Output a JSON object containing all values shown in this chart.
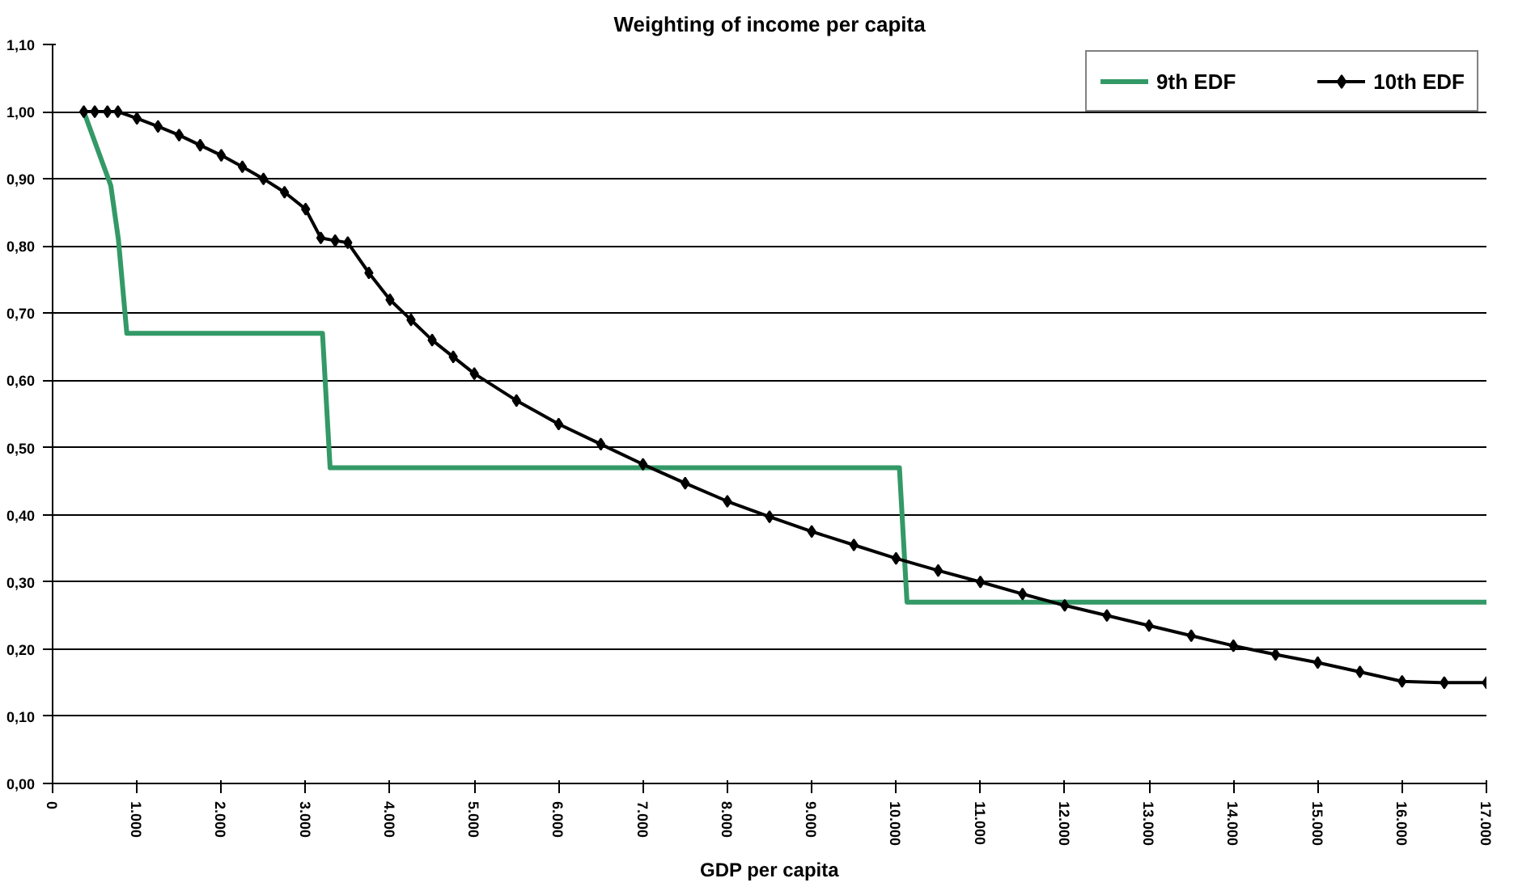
{
  "chart_data": {
    "type": "line",
    "title": "Weighting of income per capita",
    "xlabel": "GDP per capita",
    "xlim": [
      0,
      17000
    ],
    "ylim": [
      0,
      1.1
    ],
    "xticks": [
      0,
      {
        "value": 1000,
        "label": "1.000"
      },
      {
        "value": 2000,
        "label": "2.000"
      },
      {
        "value": 3000,
        "label": "3.000"
      },
      {
        "value": 4000,
        "label": "4.000"
      },
      {
        "value": 5000,
        "label": "5.000"
      },
      {
        "value": 6000,
        "label": "6.000"
      },
      {
        "value": 7000,
        "label": "7.000"
      },
      {
        "value": 8000,
        "label": "8.000"
      },
      {
        "value": 9000,
        "label": "9.000"
      },
      {
        "value": 10000,
        "label": "10.000"
      },
      {
        "value": 11000,
        "label": "11.000"
      },
      {
        "value": 12000,
        "label": "12.000"
      },
      {
        "value": 13000,
        "label": "13.000"
      },
      {
        "value": 14000,
        "label": "14.000"
      },
      {
        "value": 15000,
        "label": "15.000"
      },
      {
        "value": 16000,
        "label": "16.000"
      },
      {
        "value": 17000,
        "label": "17.000"
      }
    ],
    "yticks": [
      {
        "value": 0,
        "label": "0,00"
      },
      {
        "value": 0.1,
        "label": "0,10"
      },
      {
        "value": 0.2,
        "label": "0,20"
      },
      {
        "value": 0.3,
        "label": "0,30"
      },
      {
        "value": 0.4,
        "label": "0,40"
      },
      {
        "value": 0.5,
        "label": "0,50"
      },
      {
        "value": 0.6,
        "label": "0,60"
      },
      {
        "value": 0.7,
        "label": "0,70"
      },
      {
        "value": 0.8,
        "label": "0,80"
      },
      {
        "value": 0.9,
        "label": "0,90"
      },
      {
        "value": 1.0,
        "label": "1,00"
      },
      {
        "value": 1.1,
        "label": "1,10"
      }
    ],
    "grid": "y",
    "legend": "top right",
    "series": [
      {
        "name": "9th EDF",
        "color": "#339966",
        "marker": "none",
        "x": [
          370,
          690,
          780,
          880,
          3200,
          3290,
          10040,
          10130,
          17000
        ],
        "values": [
          1.0,
          0.89,
          0.81,
          0.67,
          0.67,
          0.47,
          0.47,
          0.27,
          0.27
        ]
      },
      {
        "name": "10th EDF",
        "color": "#000000",
        "marker": "diamond",
        "x": [
          370,
          500,
          650,
          775,
          1000,
          1250,
          1500,
          1750,
          2000,
          2250,
          2500,
          2750,
          3000,
          3180,
          3350,
          3500,
          3750,
          4000,
          4250,
          4500,
          4750,
          5000,
          5500,
          6000,
          6500,
          7000,
          7500,
          8000,
          8500,
          9000,
          9500,
          10000,
          10500,
          11000,
          11500,
          12000,
          12500,
          13000,
          13500,
          14000,
          14500,
          15000,
          15500,
          16000,
          16500,
          17000
        ],
        "values": [
          1.0,
          1.0,
          1.0,
          1.0,
          0.99,
          0.978,
          0.965,
          0.95,
          0.935,
          0.918,
          0.9,
          0.88,
          0.855,
          0.812,
          0.808,
          0.805,
          0.76,
          0.72,
          0.69,
          0.66,
          0.635,
          0.61,
          0.57,
          0.535,
          0.505,
          0.475,
          0.447,
          0.42,
          0.397,
          0.375,
          0.355,
          0.335,
          0.317,
          0.3,
          0.282,
          0.265,
          0.25,
          0.235,
          0.22,
          0.205,
          0.192,
          0.18,
          0.166,
          0.152,
          0.15,
          0.15
        ]
      }
    ]
  }
}
